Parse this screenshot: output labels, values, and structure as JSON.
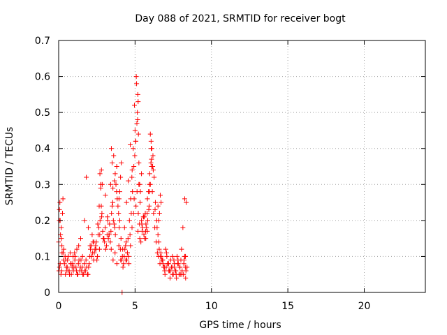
{
  "chart_data": {
    "type": "scatter",
    "title": "Day 088 of 2021, SRMTID for receiver bogt",
    "xlabel": "GPS time / hours",
    "ylabel": "SRMTID / TECUs",
    "xlim": [
      0,
      24
    ],
    "ylim": [
      0,
      0.7
    ],
    "x_ticks": [
      0,
      5,
      10,
      15,
      20
    ],
    "x_tick_labels": [
      "0",
      "5",
      "10",
      "15",
      "20"
    ],
    "y_ticks": [
      0,
      0.1,
      0.2,
      0.3,
      0.4,
      0.5,
      0.6,
      0.7
    ],
    "y_tick_labels": [
      "0",
      "0.1",
      "0.2",
      "0.3",
      "0.4",
      "0.5",
      "0.6",
      "0.7"
    ],
    "grid": true,
    "marker": "plus",
    "series": [
      {
        "name": "SRMTID",
        "color": "#ff0000",
        "x": [
          0.0,
          0.08,
          0.17,
          0.25,
          0.33,
          0.42,
          0.5,
          0.58,
          0.67,
          0.75,
          0.83,
          0.92,
          1.0,
          1.08,
          1.17,
          1.25,
          1.33,
          1.42,
          1.5,
          1.58,
          1.67,
          1.75,
          1.83,
          1.92,
          2.0,
          2.08,
          2.17,
          2.25,
          2.33,
          2.42,
          2.5,
          2.58,
          2.67,
          2.75,
          2.83,
          2.92,
          3.0,
          3.08,
          3.17,
          3.25,
          3.33,
          3.42,
          3.5,
          3.58,
          3.67,
          3.75,
          3.83,
          3.92,
          4.0,
          4.08,
          4.17,
          4.25,
          4.33,
          4.42,
          4.5,
          4.58,
          4.67,
          4.75,
          4.83,
          4.92,
          5.0,
          5.08,
          5.17,
          5.25,
          5.33,
          5.42,
          5.5,
          5.58,
          5.67,
          5.75,
          5.83,
          5.92,
          6.0,
          6.08,
          6.17,
          6.25,
          6.33,
          6.42,
          6.5,
          6.58,
          6.67,
          6.75,
          6.83,
          6.92,
          7.0,
          7.08,
          7.17,
          7.25,
          7.33,
          7.42,
          7.5,
          7.58,
          7.67,
          7.75,
          7.83,
          7.92,
          8.0,
          8.08,
          8.17,
          8.25,
          8.33,
          0.04,
          0.12,
          0.21,
          0.29,
          0.38,
          0.46,
          0.54,
          0.63,
          0.71,
          0.79,
          0.88,
          0.96,
          1.04,
          1.13,
          1.21,
          1.29,
          1.38,
          1.46,
          1.54,
          1.63,
          1.71,
          1.79,
          1.88,
          1.96,
          2.04,
          2.13,
          2.21,
          2.29,
          2.38,
          2.46,
          2.54,
          2.63,
          2.71,
          2.79,
          2.88,
          2.96,
          3.04,
          3.13,
          3.21,
          3.29,
          3.38,
          3.46,
          3.54,
          3.63,
          3.71,
          3.79,
          3.88,
          3.96,
          4.04,
          4.13,
          4.21,
          4.29,
          4.38,
          4.46,
          4.54,
          4.63,
          4.71,
          4.79,
          4.88,
          4.96,
          5.04,
          5.13,
          5.21,
          5.29,
          5.38,
          5.46,
          5.54,
          5.63,
          5.71,
          5.79,
          5.88,
          5.96,
          6.04,
          6.13,
          6.21,
          6.29,
          6.38,
          6.46,
          6.54,
          6.63,
          6.71,
          6.79,
          6.88,
          6.96,
          7.04,
          7.13,
          7.21,
          7.29,
          7.38,
          7.46,
          7.54,
          7.63,
          7.71,
          7.79,
          7.88,
          7.96,
          8.04,
          8.13,
          8.21,
          8.29,
          0.02,
          0.1,
          0.15,
          0.06,
          0.19,
          0.31,
          0.44,
          0.56,
          0.69,
          0.81,
          0.94,
          1.06,
          1.19,
          1.31,
          1.44,
          1.56,
          1.69,
          1.81,
          1.94,
          2.06,
          2.19,
          2.31,
          2.44,
          2.56,
          2.69,
          2.81,
          2.94,
          3.06,
          3.19,
          3.31,
          3.44,
          3.56,
          3.69,
          3.81,
          3.94,
          4.06,
          4.19,
          4.31,
          4.44,
          4.56,
          4.69,
          4.81,
          4.94,
          5.06,
          5.19,
          5.31,
          5.44,
          5.56,
          5.69,
          5.81,
          5.94,
          6.06,
          6.19,
          6.31,
          6.44,
          6.56,
          6.69,
          6.81,
          6.94,
          7.06,
          7.19,
          7.31,
          7.44,
          7.56,
          7.69,
          7.81,
          7.94,
          8.06,
          8.19,
          8.31,
          5.1,
          5.15,
          5.12,
          5.2,
          5.05,
          5.22,
          4.98,
          5.3,
          5.18,
          5.25,
          5.35,
          5.42,
          6.0,
          6.05,
          6.1,
          6.15,
          5.95,
          6.08,
          3.4,
          3.5,
          3.6,
          3.45,
          3.7,
          3.8,
          3.55,
          3.65,
          2.7,
          2.75,
          2.8,
          2.65,
          2.85,
          4.0,
          4.1,
          4.05,
          3.95,
          4.15,
          8.3,
          8.4,
          8.35,
          8.25,
          0.05,
          0.1,
          0.18,
          0.22,
          0.28,
          6.5,
          6.6,
          6.55,
          6.7,
          6.65,
          4.4,
          4.5,
          4.6,
          4.7,
          4.8,
          4.9,
          5.6,
          5.7,
          5.8,
          5.9
        ],
        "y": [
          0.14,
          0.25,
          0.18,
          0.22,
          0.12,
          0.1,
          0.07,
          0.09,
          0.06,
          0.11,
          0.05,
          0.08,
          0.07,
          0.1,
          0.06,
          0.05,
          0.09,
          0.07,
          0.06,
          0.05,
          0.08,
          0.06,
          0.07,
          0.05,
          0.08,
          0.12,
          0.1,
          0.14,
          0.11,
          0.13,
          0.09,
          0.16,
          0.12,
          0.3,
          0.22,
          0.15,
          0.14,
          0.12,
          0.16,
          0.15,
          0.19,
          0.17,
          0.24,
          0.2,
          0.18,
          0.3,
          0.26,
          0.22,
          0.2,
          0.15,
          0.1,
          0.08,
          0.12,
          0.14,
          0.11,
          0.1,
          0.16,
          0.22,
          0.28,
          0.35,
          0.45,
          0.6,
          0.48,
          0.3,
          0.25,
          0.2,
          0.18,
          0.16,
          0.22,
          0.18,
          0.2,
          0.24,
          0.3,
          0.35,
          0.38,
          0.32,
          0.25,
          0.2,
          0.16,
          0.12,
          0.1,
          0.09,
          0.08,
          0.07,
          0.12,
          0.1,
          0.08,
          0.06,
          0.09,
          0.07,
          0.05,
          0.08,
          0.06,
          0.1,
          0.08,
          0.07,
          0.09,
          0.06,
          0.05,
          0.1,
          0.06,
          0.2,
          0.16,
          0.13,
          0.11,
          0.08,
          0.09,
          0.06,
          0.1,
          0.05,
          0.08,
          0.07,
          0.06,
          0.11,
          0.07,
          0.05,
          0.08,
          0.06,
          0.09,
          0.07,
          0.05,
          0.06,
          0.09,
          0.05,
          0.07,
          0.1,
          0.13,
          0.11,
          0.09,
          0.12,
          0.14,
          0.1,
          0.18,
          0.2,
          0.24,
          0.17,
          0.15,
          0.18,
          0.13,
          0.2,
          0.16,
          0.14,
          0.22,
          0.25,
          0.19,
          0.16,
          0.28,
          0.24,
          0.18,
          0.12,
          0.09,
          0.07,
          0.1,
          0.13,
          0.09,
          0.15,
          0.2,
          0.26,
          0.32,
          0.4,
          0.52,
          0.42,
          0.28,
          0.22,
          0.19,
          0.14,
          0.17,
          0.21,
          0.15,
          0.19,
          0.22,
          0.28,
          0.33,
          0.36,
          0.28,
          0.22,
          0.18,
          0.14,
          0.11,
          0.1,
          0.08,
          0.1,
          0.09,
          0.07,
          0.05,
          0.07,
          0.08,
          0.06,
          0.04,
          0.07,
          0.05,
          0.09,
          0.06,
          0.04,
          0.08,
          0.05,
          0.05,
          0.12,
          0.18,
          0.09,
          0.07,
          0.06,
          0.08,
          0.05,
          0.07,
          0.06,
          0.09,
          0.05,
          0.07,
          0.06,
          0.08,
          0.1,
          0.09,
          0.12,
          0.13,
          0.15,
          0.1,
          0.2,
          0.32,
          0.18,
          0.13,
          0.16,
          0.14,
          0.12,
          0.19,
          0.16,
          0.21,
          0.15,
          0.27,
          0.21,
          0.16,
          0.12,
          0.09,
          0.11,
          0.08,
          0.13,
          0.09,
          0.12,
          0.18,
          0.25,
          0.31,
          0.41,
          0.34,
          0.26,
          0.24,
          0.17,
          0.15,
          0.19,
          0.21,
          0.17,
          0.26,
          0.3,
          0.4,
          0.34,
          0.23,
          0.18,
          0.14,
          0.11,
          0.09,
          0.06,
          0.11,
          0.08,
          0.06,
          0.1,
          0.07,
          0.05,
          0.09,
          0.07,
          0.05,
          0.08,
          0.04,
          0.58,
          0.5,
          0.47,
          0.53,
          0.42,
          0.44,
          0.38,
          0.3,
          0.55,
          0.36,
          0.28,
          0.33,
          0.44,
          0.42,
          0.4,
          0.35,
          0.28,
          0.37,
          0.3,
          0.36,
          0.38,
          0.4,
          0.33,
          0.35,
          0.29,
          0.31,
          0.33,
          0.29,
          0.34,
          0.24,
          0.3,
          0.28,
          0.36,
          0.32,
          0.26,
          0.0,
          0.1,
          0.07,
          0.25,
          0.26,
          0.23,
          0.2,
          0.15,
          0.11,
          0.26,
          0.24,
          0.22,
          0.2,
          0.25,
          0.27,
          0.09,
          0.11,
          0.08,
          0.13,
          0.18,
          0.22,
          0.21,
          0.15,
          0.17,
          0.23
        ]
      }
    ]
  }
}
